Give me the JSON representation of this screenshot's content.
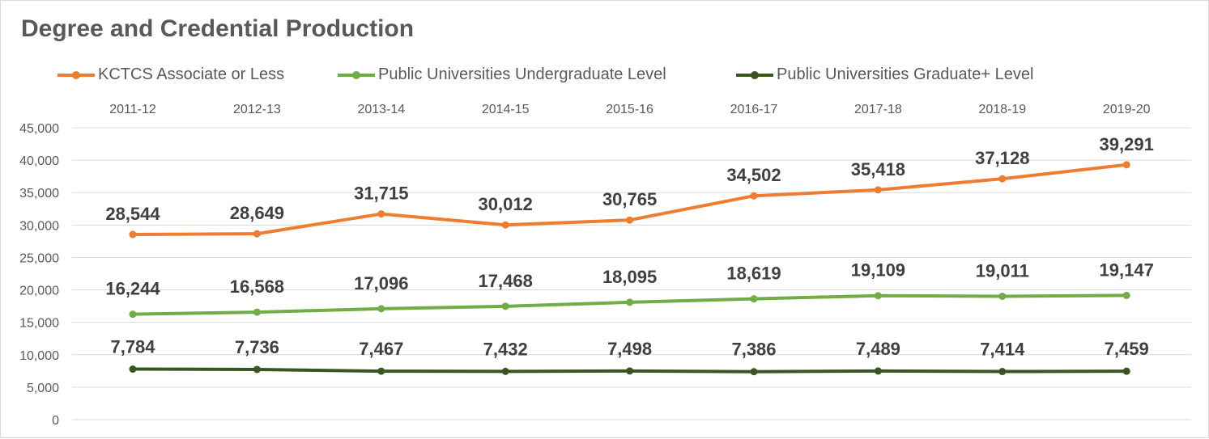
{
  "title": "Degree and Credential Production",
  "chart_data": {
    "type": "line",
    "title": "Degree and Credential Production",
    "categories": [
      "2011-12",
      "2012-13",
      "2013-14",
      "2014-15",
      "2015-16",
      "2016-17",
      "2017-18",
      "2018-19",
      "2019-20"
    ],
    "y_ticks": [
      "0",
      "5,000",
      "10,000",
      "15,000",
      "20,000",
      "25,000",
      "30,000",
      "35,000",
      "40,000",
      "45,000"
    ],
    "ylim": [
      0,
      45000
    ],
    "grid": true,
    "legend_position": "top",
    "x_axis_position": "top",
    "series": [
      {
        "name": "KCTCS Associate or Less",
        "color": "#ed7d31",
        "values": [
          28544,
          28649,
          31715,
          30012,
          30765,
          34502,
          35418,
          37128,
          39291
        ],
        "labels": [
          "28,544",
          "28,649",
          "31,715",
          "30,012",
          "30,765",
          "34,502",
          "35,418",
          "37,128",
          "39,291"
        ]
      },
      {
        "name": "Public Universities Undergraduate Level",
        "color": "#70ad47",
        "values": [
          16244,
          16568,
          17096,
          17468,
          18095,
          18619,
          19109,
          19011,
          19147
        ],
        "labels": [
          "16,244",
          "16,568",
          "17,096",
          "17,468",
          "18,095",
          "18,619",
          "19,109",
          "19,011",
          "19,147"
        ]
      },
      {
        "name": "Public Universities Graduate+ Level",
        "color": "#375623",
        "values": [
          7784,
          7736,
          7467,
          7432,
          7498,
          7386,
          7489,
          7414,
          7459
        ],
        "labels": [
          "7,784",
          "7,736",
          "7,467",
          "7,432",
          "7,498",
          "7,386",
          "7,489",
          "7,414",
          "7,459"
        ]
      }
    ]
  }
}
